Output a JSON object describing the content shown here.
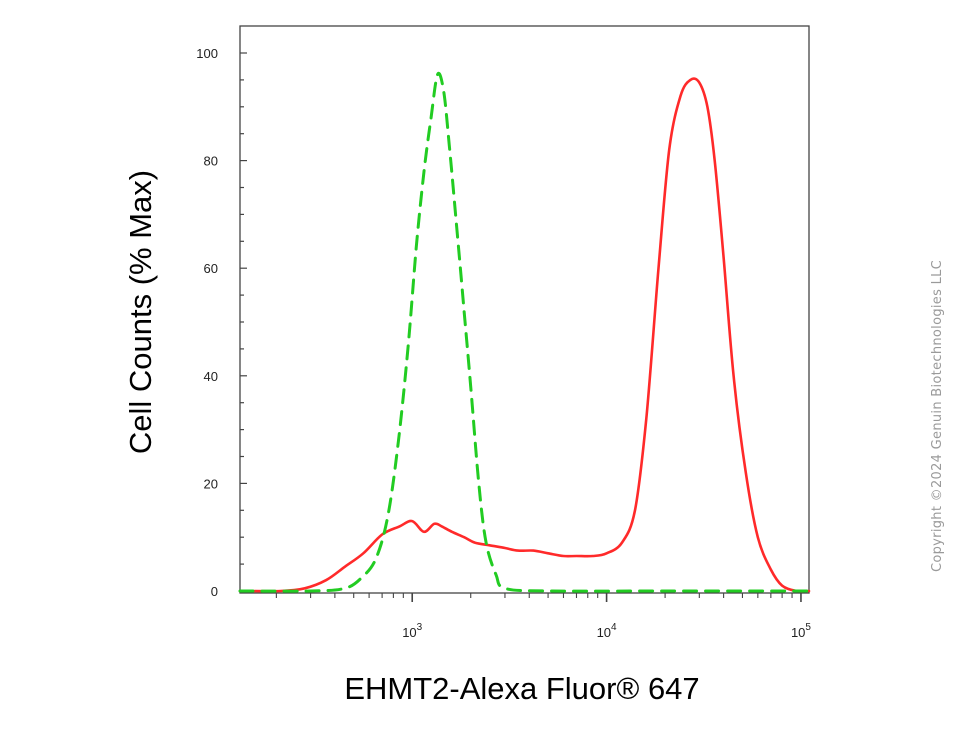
{
  "chart_data": {
    "type": "line",
    "xlabel": "EHMT2-Alexa Fluor® 647",
    "ylabel": "Cell Counts (% Max)",
    "xscale": "log",
    "xlim": [
      130,
      110000
    ],
    "ylim": [
      0,
      100
    ],
    "y_ticks": [
      "0",
      "20",
      "40",
      "60",
      "80",
      "100"
    ],
    "x_ticks": [
      {
        "value": 1000,
        "base": "10",
        "exp": "3"
      },
      {
        "value": 10000,
        "base": "10",
        "exp": "4"
      },
      {
        "value": 100000,
        "base": "10",
        "exp": "5"
      }
    ],
    "series": [
      {
        "color": "#ff2a2a",
        "style": "solid",
        "x": [
          130,
          210,
          280,
          360,
          450,
          560,
          700,
          860,
          1000,
          1150,
          1300,
          1420,
          1600,
          1850,
          2100,
          2500,
          3000,
          3500,
          4200,
          5000,
          6000,
          7000,
          8500,
          10000,
          12000,
          14000,
          16000,
          18500,
          21000,
          24000,
          27000,
          30000,
          33000,
          36000,
          40000,
          45000,
          52000,
          60000,
          70000,
          80000,
          95000,
          110000
        ],
        "values": [
          0,
          0,
          0.5,
          2,
          4.5,
          7,
          10.5,
          12,
          13,
          11,
          12.5,
          12,
          11,
          10,
          9,
          8.5,
          8,
          7.5,
          7.5,
          7,
          6.5,
          6.5,
          6.5,
          7,
          9,
          15,
          32,
          60,
          82,
          92,
          95,
          94.5,
          90,
          80,
          62,
          40,
          22,
          10,
          4,
          1,
          0,
          0
        ]
      },
      {
        "color": "#22cc22",
        "style": "dashed",
        "x": [
          130,
          300,
          450,
          550,
          650,
          750,
          850,
          950,
          1050,
          1150,
          1250,
          1350,
          1450,
          1550,
          1700,
          1850,
          2000,
          2200,
          2400,
          2700,
          3000,
          5000,
          20000,
          110000
        ],
        "values": [
          0,
          0,
          0.5,
          2.5,
          6,
          14,
          28,
          45,
          64,
          78,
          88,
          96,
          93,
          83,
          67,
          52,
          38,
          20,
          9,
          3,
          0.5,
          0,
          0,
          0
        ]
      }
    ]
  },
  "watermark": "Copyright ©2024 Genuin Biotechnologies LLC"
}
